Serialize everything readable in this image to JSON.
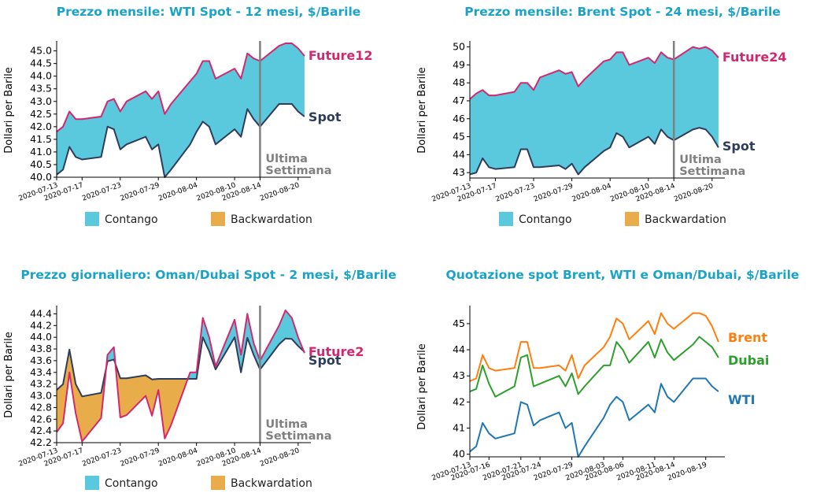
{
  "colors": {
    "title": "#1aa3c7",
    "contango": "#5ac8dd",
    "backwardation": "#e8ac4a",
    "future": "#d4286e",
    "spot": "#2e3d5c",
    "marker": "#808080",
    "brent": "#ff7f0e",
    "dubai": "#2ca02c",
    "wti": "#1f77b4"
  },
  "legend": {
    "contango": "Contango",
    "backwardation": "Backwardation"
  },
  "marker_label": {
    "line1": "Ultima",
    "line2": "Settimana"
  },
  "chart_data": [
    {
      "type": "area",
      "title": "Prezzo mensile: WTI Spot - 12 mesi, $/Barile",
      "ylabel": "Dollari per Barile",
      "xlabel": "",
      "ylim": [
        40.0,
        45.3
      ],
      "yticks": [
        "40.0",
        "40.5",
        "41.0",
        "41.5",
        "42.0",
        "42.5",
        "43.0",
        "43.5",
        "44.0",
        "44.5",
        "45.0"
      ],
      "xticks": [
        "2020-07-13",
        "2020-07-17",
        "2020-07-23",
        "2020-07-29",
        "2020-08-04",
        "2020-08-10",
        "2020-08-14",
        "2020-08-20"
      ],
      "marker_date": "2020-08-14",
      "future_label": "Future12",
      "spot_label": "Spot",
      "x": [
        "2020-07-13",
        "2020-07-14",
        "2020-07-15",
        "2020-07-16",
        "2020-07-17",
        "2020-07-20",
        "2020-07-21",
        "2020-07-22",
        "2020-07-23",
        "2020-07-24",
        "2020-07-27",
        "2020-07-28",
        "2020-07-29",
        "2020-07-30",
        "2020-07-31",
        "2020-08-03",
        "2020-08-04",
        "2020-08-05",
        "2020-08-06",
        "2020-08-07",
        "2020-08-10",
        "2020-08-11",
        "2020-08-12",
        "2020-08-13",
        "2020-08-14",
        "2020-08-17",
        "2020-08-18",
        "2020-08-19",
        "2020-08-20",
        "2020-08-21"
      ],
      "series": [
        {
          "name": "Future12",
          "values": [
            41.8,
            42.0,
            42.6,
            42.3,
            42.3,
            42.4,
            43.0,
            43.1,
            42.6,
            43.0,
            43.4,
            43.1,
            43.4,
            42.5,
            42.9,
            43.8,
            44.1,
            44.6,
            44.6,
            43.9,
            44.3,
            43.9,
            44.9,
            44.7,
            44.6,
            45.2,
            45.3,
            45.3,
            45.1,
            44.8
          ]
        },
        {
          "name": "Spot",
          "values": [
            40.1,
            40.3,
            41.2,
            40.8,
            40.7,
            40.8,
            42.0,
            41.9,
            41.1,
            41.3,
            41.6,
            41.1,
            41.3,
            40.0,
            40.3,
            41.3,
            41.8,
            42.2,
            42.0,
            41.3,
            41.9,
            41.6,
            42.7,
            42.3,
            42.0,
            42.9,
            42.9,
            42.9,
            42.6,
            42.4
          ]
        }
      ]
    },
    {
      "type": "area",
      "title": "Prezzo mensile: Brent Spot - 24 mesi, $/Barile",
      "ylabel": "Dollari per Barile",
      "xlabel": "",
      "ylim": [
        42.7,
        50.2
      ],
      "yticks": [
        "43",
        "44",
        "45",
        "46",
        "47",
        "48",
        "49",
        "50"
      ],
      "xticks": [
        "2020-07-13",
        "2020-07-17",
        "2020-07-23",
        "2020-07-29",
        "2020-08-04",
        "2020-08-10",
        "2020-08-14",
        "2020-08-20"
      ],
      "marker_date": "2020-08-14",
      "future_label": "Future24",
      "spot_label": "Spot",
      "x": [
        "2020-07-13",
        "2020-07-14",
        "2020-07-15",
        "2020-07-16",
        "2020-07-17",
        "2020-07-20",
        "2020-07-21",
        "2020-07-22",
        "2020-07-23",
        "2020-07-24",
        "2020-07-27",
        "2020-07-28",
        "2020-07-29",
        "2020-07-30",
        "2020-07-31",
        "2020-08-03",
        "2020-08-04",
        "2020-08-05",
        "2020-08-06",
        "2020-08-07",
        "2020-08-10",
        "2020-08-11",
        "2020-08-12",
        "2020-08-13",
        "2020-08-14",
        "2020-08-17",
        "2020-08-18",
        "2020-08-19",
        "2020-08-20",
        "2020-08-21"
      ],
      "series": [
        {
          "name": "Future24",
          "values": [
            47.1,
            47.4,
            47.6,
            47.3,
            47.3,
            47.5,
            48.0,
            48.0,
            47.6,
            48.3,
            48.7,
            48.5,
            48.6,
            47.8,
            48.2,
            49.2,
            49.3,
            49.7,
            49.7,
            49.0,
            49.4,
            49.1,
            49.7,
            49.4,
            49.3,
            50.0,
            49.9,
            50.0,
            49.8,
            49.4
          ]
        },
        {
          "name": "Spot",
          "values": [
            42.9,
            43.0,
            43.8,
            43.3,
            43.2,
            43.3,
            44.3,
            44.3,
            43.3,
            43.3,
            43.4,
            43.2,
            43.5,
            42.9,
            43.3,
            44.2,
            44.4,
            45.2,
            45.0,
            44.4,
            45.0,
            44.6,
            45.4,
            45.0,
            44.8,
            45.4,
            45.5,
            45.4,
            45.0,
            44.4
          ]
        }
      ]
    },
    {
      "type": "area",
      "title": "Prezzo giornaliero: Oman/Dubai Spot - 2 mesi, $/Barile",
      "ylabel": "Dollari per Barile",
      "xlabel": "",
      "ylim": [
        42.2,
        44.5
      ],
      "yticks": [
        "42.2",
        "42.4",
        "42.6",
        "42.8",
        "43.0",
        "43.2",
        "43.4",
        "43.6",
        "43.8",
        "44.0",
        "44.2",
        "44.4"
      ],
      "xticks": [
        "2020-07-13",
        "2020-07-17",
        "2020-07-23",
        "2020-07-29",
        "2020-08-04",
        "2020-08-10",
        "2020-08-14",
        "2020-08-20"
      ],
      "marker_date": "2020-08-14",
      "future_label": "Future2",
      "spot_label": "Spot",
      "x": [
        "2020-07-13",
        "2020-07-14",
        "2020-07-15",
        "2020-07-16",
        "2020-07-17",
        "2020-07-20",
        "2020-07-21",
        "2020-07-22",
        "2020-07-23",
        "2020-07-24",
        "2020-07-27",
        "2020-07-28",
        "2020-07-29",
        "2020-07-30",
        "2020-07-31",
        "2020-08-03",
        "2020-08-04",
        "2020-08-05",
        "2020-08-06",
        "2020-08-07",
        "2020-08-10",
        "2020-08-11",
        "2020-08-12",
        "2020-08-13",
        "2020-08-14",
        "2020-08-17",
        "2020-08-18",
        "2020-08-19",
        "2020-08-20",
        "2020-08-21"
      ],
      "series": [
        {
          "name": "Future2",
          "values": [
            42.38,
            42.53,
            43.4,
            42.7,
            42.22,
            42.62,
            43.7,
            43.83,
            42.63,
            42.67,
            43.0,
            42.66,
            43.1,
            42.27,
            42.5,
            43.4,
            43.4,
            44.33,
            44.0,
            43.5,
            44.3,
            43.7,
            44.4,
            43.9,
            43.6,
            44.2,
            44.46,
            44.33,
            44.0,
            43.73
          ]
        },
        {
          "name": "Spot",
          "values": [
            43.1,
            43.2,
            43.79,
            43.2,
            42.99,
            43.05,
            43.59,
            43.62,
            43.3,
            43.3,
            43.35,
            43.28,
            43.29,
            43.29,
            43.29,
            43.29,
            43.29,
            44.0,
            43.76,
            43.45,
            44.0,
            43.4,
            43.99,
            43.7,
            43.45,
            43.88,
            43.98,
            43.97,
            43.85,
            43.75
          ]
        }
      ]
    },
    {
      "type": "line",
      "title": "Quotazione spot Brent, WTI e Oman/Dubai, $/Barile",
      "ylabel": "Dollari per Barile",
      "xlabel": "",
      "ylim": [
        39.9,
        45.6
      ],
      "yticks": [
        "40",
        "41",
        "42",
        "43",
        "44",
        "45"
      ],
      "xticks": [
        "2020-07-13",
        "2020-07-16",
        "2020-07-21",
        "2020-07-24",
        "2020-07-29",
        "2020-08-03",
        "2020-08-06",
        "2020-08-11",
        "2020-08-14",
        "2020-08-19"
      ],
      "x": [
        "2020-07-13",
        "2020-07-14",
        "2020-07-15",
        "2020-07-16",
        "2020-07-17",
        "2020-07-20",
        "2020-07-21",
        "2020-07-22",
        "2020-07-23",
        "2020-07-24",
        "2020-07-27",
        "2020-07-28",
        "2020-07-29",
        "2020-07-30",
        "2020-07-31",
        "2020-08-03",
        "2020-08-04",
        "2020-08-05",
        "2020-08-06",
        "2020-08-07",
        "2020-08-10",
        "2020-08-11",
        "2020-08-12",
        "2020-08-13",
        "2020-08-14",
        "2020-08-17",
        "2020-08-18",
        "2020-08-19",
        "2020-08-20",
        "2020-08-21"
      ],
      "series": [
        {
          "name": "Brent",
          "values": [
            42.8,
            42.9,
            43.8,
            43.3,
            43.2,
            43.3,
            44.3,
            44.3,
            43.3,
            43.3,
            43.4,
            43.2,
            43.8,
            42.9,
            43.4,
            44.1,
            44.5,
            45.2,
            45.0,
            44.4,
            45.1,
            44.6,
            45.4,
            45.0,
            44.8,
            45.4,
            45.4,
            45.3,
            44.9,
            44.3
          ]
        },
        {
          "name": "Dubai",
          "values": [
            42.4,
            42.5,
            43.4,
            42.7,
            42.2,
            42.6,
            43.7,
            43.8,
            42.6,
            42.7,
            43.0,
            42.6,
            43.1,
            42.3,
            42.6,
            43.4,
            43.4,
            44.3,
            44.0,
            43.5,
            44.3,
            43.7,
            44.4,
            43.9,
            43.6,
            44.2,
            44.5,
            44.3,
            44.1,
            43.7
          ]
        },
        {
          "name": "WTI",
          "values": [
            40.1,
            40.3,
            41.2,
            40.8,
            40.6,
            40.8,
            42.0,
            41.9,
            41.1,
            41.3,
            41.6,
            41.0,
            41.2,
            39.9,
            40.3,
            41.4,
            41.9,
            42.2,
            42.0,
            41.3,
            41.9,
            41.6,
            42.7,
            42.2,
            42.0,
            42.9,
            42.9,
            42.9,
            42.6,
            42.4
          ]
        }
      ]
    }
  ]
}
